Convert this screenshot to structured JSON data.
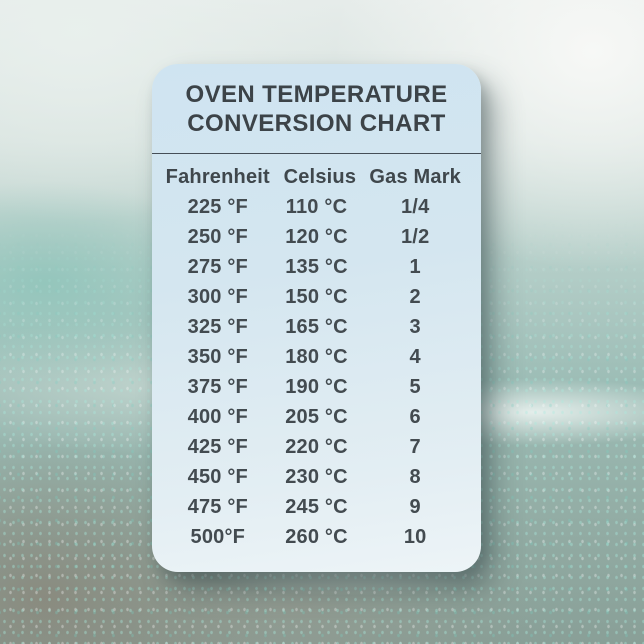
{
  "palette": {
    "card_bg_top": "#cfe4f1",
    "card_bg_bottom": "#edf4f7",
    "card_text": "#424a4f",
    "divider": "#454e57",
    "background_teal": "#9cbcb5",
    "background_pale": "#e6ecea",
    "background_gray_brown": "#898878",
    "sparkle": "#aaebde"
  },
  "card": {
    "title_line1": "OVEN TEMPERATURE",
    "title_line2": "CONVERSION CHART"
  },
  "chart_data": {
    "type": "table",
    "title": "OVEN TEMPERATURE CONVERSION CHART",
    "columns": [
      "Fahrenheit",
      "Celsius",
      "Gas Mark"
    ],
    "rows": [
      [
        "225 °F",
        "110 °C",
        "1/4"
      ],
      [
        "250 °F",
        "120 °C",
        "1/2"
      ],
      [
        "275 °F",
        "135 °C",
        "1"
      ],
      [
        "300 °F",
        "150 °C",
        "2"
      ],
      [
        "325 °F",
        "165 °C",
        "3"
      ],
      [
        "350 °F",
        "180 °C",
        "4"
      ],
      [
        "375 °F",
        "190 °C",
        "5"
      ],
      [
        "400 °F",
        "205 °C",
        "6"
      ],
      [
        "425 °F",
        "220 °C",
        "7"
      ],
      [
        "450 °F",
        "230 °C",
        "8"
      ],
      [
        "475 °F",
        "245 °C",
        "9"
      ],
      [
        "500°F",
        "260 °C",
        "10"
      ]
    ]
  }
}
